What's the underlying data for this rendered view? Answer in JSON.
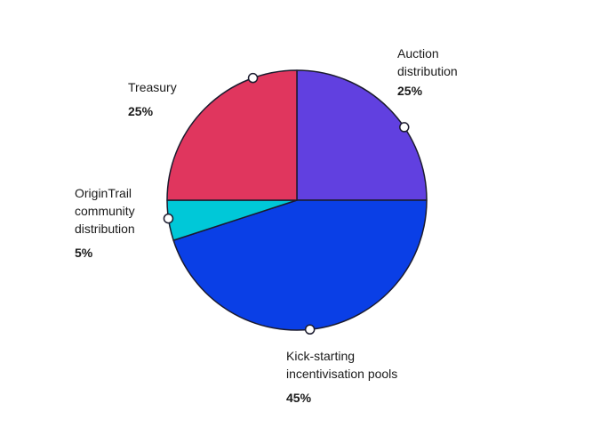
{
  "chart_data": {
    "type": "pie",
    "slices": [
      {
        "label": "Auction distribution",
        "lines": [
          "Auction",
          "distribution"
        ],
        "value": 25,
        "value_label": "25%",
        "color": "#6140e0"
      },
      {
        "label": "Kick-starting incentivisation pools",
        "lines": [
          "Kick-starting",
          "incentivisation pools"
        ],
        "value": 45,
        "value_label": "45%",
        "color": "#0a3fe6"
      },
      {
        "label": "OriginTrail community distribution",
        "lines": [
          "OriginTrail",
          "community",
          "distribution"
        ],
        "value": 5,
        "value_label": "5%",
        "color": "#00c8d8"
      },
      {
        "label": "Treasury",
        "lines": [
          "Treasury"
        ],
        "value": 25,
        "value_label": "25%",
        "color": "#e0365e"
      }
    ],
    "start_angle": "12 o'clock",
    "direction": "clockwise",
    "legend": "none"
  }
}
